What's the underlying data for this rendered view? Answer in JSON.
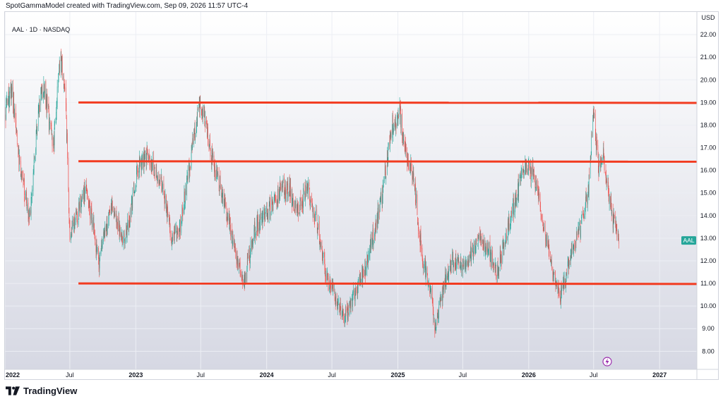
{
  "header": {
    "caption": "SpotGammaModel created with TradingView.com, Sep 09, 2026 11:57 UTC-4"
  },
  "chart_data": {
    "type": "candlestick",
    "symbol_label": "AAL · 1D · NASDAQ",
    "currency": "USD",
    "ylim": [
      7.2,
      23.0
    ],
    "y_ticks": [
      8,
      9,
      10,
      11,
      12,
      13,
      14,
      15,
      16,
      17,
      18,
      19,
      20,
      21,
      22
    ],
    "y_tick_labels": [
      "8.00",
      "9.00",
      "10.00",
      "11.00",
      "12.00",
      "13.00",
      "14.00",
      "15.00",
      "16.00",
      "17.00",
      "18.00",
      "19.00",
      "20.00",
      "21.00",
      "22.00"
    ],
    "x_range": [
      "2022-01-01",
      "2027-04-15"
    ],
    "x_ticks": [
      {
        "date": "2022-01-01",
        "label": "2022"
      },
      {
        "date": "2022-07-01",
        "label": "Jul"
      },
      {
        "date": "2023-01-01",
        "label": "2023"
      },
      {
        "date": "2023-07-01",
        "label": "Jul"
      },
      {
        "date": "2024-01-01",
        "label": "2024"
      },
      {
        "date": "2024-07-01",
        "label": "Jul"
      },
      {
        "date": "2025-01-01",
        "label": "2025"
      },
      {
        "date": "2025-07-01",
        "label": "Jul"
      },
      {
        "date": "2026-01-01",
        "label": "2026"
      },
      {
        "date": "2026-07-01",
        "label": "Jul"
      },
      {
        "date": "2027-01-01",
        "label": "2027"
      }
    ],
    "price_path": [
      [
        "2022-01-01",
        18.4
      ],
      [
        "2022-01-20",
        19.6
      ],
      [
        "2022-02-10",
        16.5
      ],
      [
        "2022-03-10",
        13.8
      ],
      [
        "2022-04-05",
        18.7
      ],
      [
        "2022-04-20",
        19.8
      ],
      [
        "2022-05-15",
        17.0
      ],
      [
        "2022-06-05",
        21.2
      ],
      [
        "2022-06-20",
        18.8
      ],
      [
        "2022-07-01",
        13.0
      ],
      [
        "2022-07-20",
        13.9
      ],
      [
        "2022-08-15",
        15.3
      ],
      [
        "2022-09-20",
        12.0
      ],
      [
        "2022-10-25",
        14.4
      ],
      [
        "2022-12-01",
        12.7
      ],
      [
        "2023-01-10",
        16.2
      ],
      [
        "2023-02-01",
        16.8
      ],
      [
        "2023-03-15",
        15.3
      ],
      [
        "2023-04-10",
        13.0
      ],
      [
        "2023-05-05",
        13.5
      ],
      [
        "2023-06-05",
        16.8
      ],
      [
        "2023-07-01",
        19.0
      ],
      [
        "2023-07-25",
        17.1
      ],
      [
        "2023-08-30",
        15.0
      ],
      [
        "2023-10-10",
        12.1
      ],
      [
        "2023-10-30",
        11.0
      ],
      [
        "2023-11-30",
        13.5
      ],
      [
        "2024-01-10",
        14.2
      ],
      [
        "2024-02-10",
        15.2
      ],
      [
        "2024-03-05",
        15.0
      ],
      [
        "2024-04-01",
        14.2
      ],
      [
        "2024-04-20",
        15.3
      ],
      [
        "2024-05-20",
        13.8
      ],
      [
        "2024-06-15",
        11.3
      ],
      [
        "2024-07-05",
        10.7
      ],
      [
        "2024-08-05",
        9.4
      ],
      [
        "2024-09-01",
        10.5
      ],
      [
        "2024-10-05",
        11.8
      ],
      [
        "2024-11-15",
        14.6
      ],
      [
        "2024-12-15",
        17.9
      ],
      [
        "2025-01-05",
        18.7
      ],
      [
        "2025-01-20",
        17.0
      ],
      [
        "2025-02-15",
        15.5
      ],
      [
        "2025-03-10",
        12.0
      ],
      [
        "2025-03-30",
        11.0
      ],
      [
        "2025-04-15",
        9.0
      ],
      [
        "2025-05-10",
        11.0
      ],
      [
        "2025-05-30",
        12.0
      ],
      [
        "2025-07-05",
        11.7
      ],
      [
        "2025-08-15",
        13.0
      ],
      [
        "2025-09-10",
        12.5
      ],
      [
        "2025-10-05",
        11.5
      ],
      [
        "2025-11-05",
        13.5
      ],
      [
        "2025-12-20",
        16.2
      ],
      [
        "2026-01-15",
        15.9
      ],
      [
        "2026-02-10",
        13.6
      ],
      [
        "2026-03-10",
        11.5
      ],
      [
        "2026-03-30",
        10.3
      ],
      [
        "2026-04-25",
        12.0
      ],
      [
        "2026-05-25",
        13.5
      ],
      [
        "2026-06-15",
        15.0
      ],
      [
        "2026-07-01",
        18.5
      ],
      [
        "2026-07-15",
        16.0
      ],
      [
        "2026-07-28",
        16.8
      ],
      [
        "2026-08-10",
        15.2
      ],
      [
        "2026-08-25",
        13.8
      ],
      [
        "2026-09-09",
        12.9
      ]
    ],
    "last_price_tag": "AAL",
    "horizontal_lines": [
      {
        "level": 19.0,
        "color": "#f23b20"
      },
      {
        "level": 16.4,
        "color": "#f23b20"
      },
      {
        "level": 11.0,
        "color": "#f23b20"
      }
    ],
    "colors": {
      "up": "#26a69a",
      "down": "#ef5350",
      "price_tag": "#26a69a",
      "bg_top": "#ffffff",
      "bg_bottom": "#d6d8e3",
      "grid": "#eceef4",
      "hline": "#f23b20",
      "lightning": "#9b2fae"
    },
    "grid": true,
    "icons": {
      "lightning": "lightning-icon"
    }
  },
  "footer": {
    "brand": "TradingView",
    "logo_icon": "tradingview-logo-icon"
  }
}
